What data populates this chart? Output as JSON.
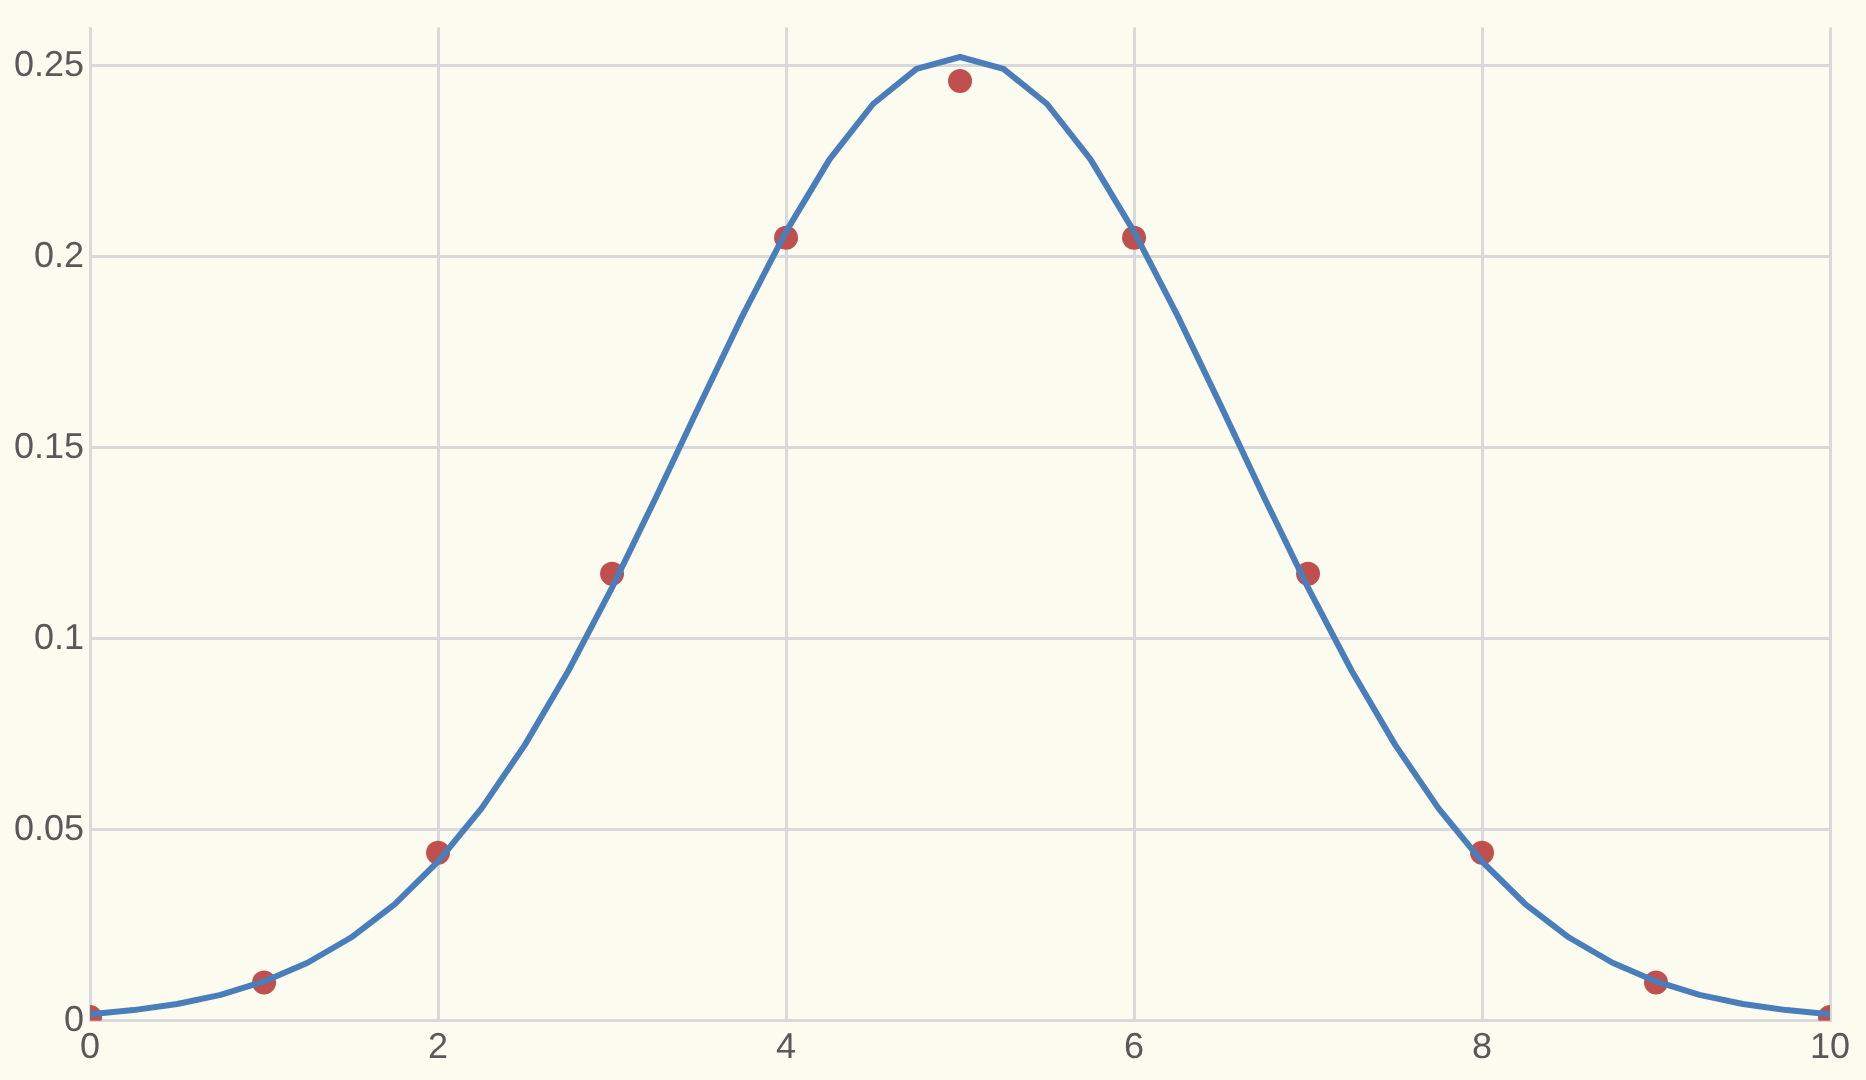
{
  "chart_data": {
    "type": "scatter",
    "xlim": [
      0,
      10
    ],
    "ylim": [
      0,
      0.26
    ],
    "xticks": [
      0,
      2,
      4,
      6,
      8,
      10
    ],
    "yticks": [
      0,
      0.05,
      0.1,
      0.15,
      0.2,
      0.25
    ],
    "grid": true,
    "legend": false,
    "series": [
      {
        "type": "line",
        "color": "#4a7ebb",
        "marker": "none",
        "line_style": "solid",
        "x": [
          0,
          0.25,
          0.5,
          0.75,
          1,
          1.25,
          1.5,
          1.75,
          2,
          2.25,
          2.5,
          2.75,
          3,
          3.25,
          3.5,
          3.75,
          4,
          4.25,
          4.5,
          4.75,
          5,
          5.25,
          5.5,
          5.75,
          6,
          6.25,
          6.5,
          6.75,
          7,
          7.25,
          7.5,
          7.75,
          8,
          8.25,
          8.5,
          8.75,
          9,
          9.25,
          9.5,
          9.75,
          10
        ],
        "values": [
          0.0017,
          0.0028,
          0.0044,
          0.0068,
          0.0103,
          0.0152,
          0.0218,
          0.0305,
          0.0417,
          0.0556,
          0.0723,
          0.0917,
          0.1134,
          0.1368,
          0.1609,
          0.1846,
          0.2066,
          0.2255,
          0.24,
          0.2492,
          0.2523,
          0.2492,
          0.24,
          0.2255,
          0.2066,
          0.1846,
          0.1609,
          0.1368,
          0.1134,
          0.0917,
          0.0723,
          0.0556,
          0.0417,
          0.0305,
          0.0218,
          0.0152,
          0.0103,
          0.0068,
          0.0044,
          0.0028,
          0.0017
        ]
      },
      {
        "type": "scatter",
        "color": "#c0504d",
        "marker": "circle",
        "x": [
          0,
          1,
          2,
          3,
          4,
          5,
          6,
          7,
          8,
          9,
          10
        ],
        "values": [
          0.001,
          0.01,
          0.044,
          0.117,
          0.205,
          0.246,
          0.205,
          0.117,
          0.044,
          0.01,
          0.001
        ]
      }
    ]
  }
}
